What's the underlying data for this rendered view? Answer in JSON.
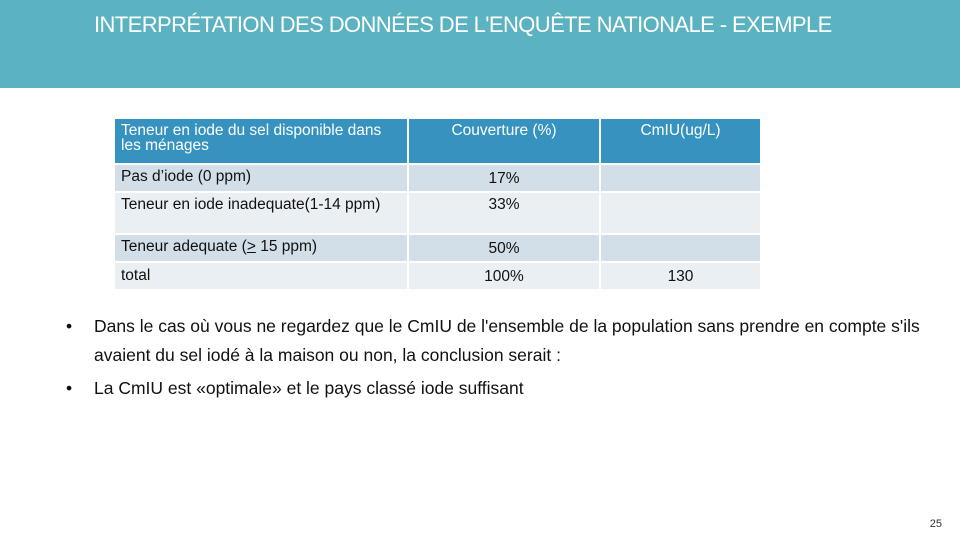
{
  "slide": {
    "title": "Interprétation des données de l'enquête nationale - exemple",
    "page_number": "25"
  },
  "table": {
    "headers": [
      "Teneur en iode du sel disponible dans les ménages",
      "Couverture (%)",
      "CmIU(ug/L)"
    ],
    "rows": [
      {
        "label": "Pas d’iode (0 ppm)",
        "coverage": "17%",
        "cmiu": ""
      },
      {
        "label": "Teneur en iode inadequate(1-14 ppm)",
        "coverage": "33%",
        "cmiu": ""
      },
      {
        "label_prefix": "Teneur adequate (",
        "label_symbol": ">",
        "label_suffix": " 15 ppm)",
        "coverage": "50%",
        "cmiu": ""
      },
      {
        "label": "total",
        "coverage": "100%",
        "cmiu": "130"
      }
    ]
  },
  "bullets": [
    {
      "marker": "•",
      "text": "Dans le cas où vous ne regardez que le CmIU de l'ensemble de la population sans prendre en compte s'ils avaient du sel iodé à la maison ou non, la conclusion serait :"
    },
    {
      "marker": "•",
      "text": "La CmIU est «optimale» et le pays classé iode suffisant"
    }
  ]
}
